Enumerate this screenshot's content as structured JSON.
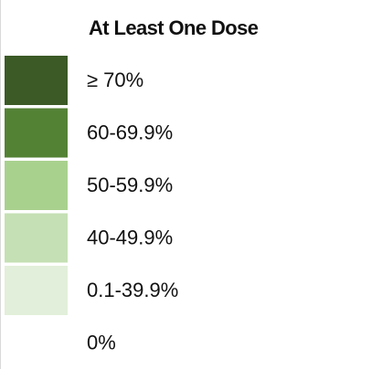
{
  "legend": {
    "title": "At Least One Dose",
    "items": [
      {
        "label": "≥ 70%",
        "color": "#3b5a25"
      },
      {
        "label": "60-69.9%",
        "color": "#548235"
      },
      {
        "label": "50-59.9%",
        "color": "#a9d18e"
      },
      {
        "label": "40-49.9%",
        "color": "#c5e0b4"
      },
      {
        "label": "0.1-39.9%",
        "color": "#e2efda"
      },
      {
        "label": "0%"
      }
    ]
  }
}
